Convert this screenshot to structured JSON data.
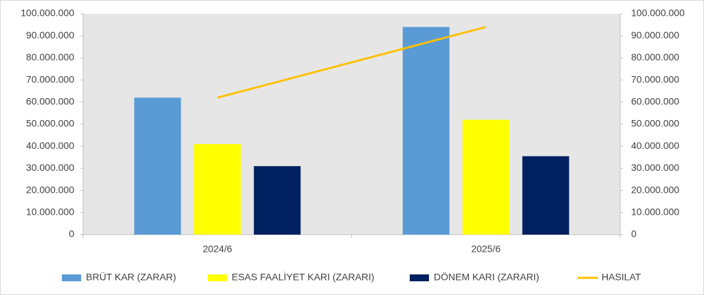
{
  "chart_data": {
    "type": "bar",
    "categories": [
      "2024/6",
      "2025/6"
    ],
    "series": [
      {
        "name": "BRÜT KAR (ZARAR)",
        "color": "#5b9bd5",
        "values": [
          62000000,
          94000000
        ]
      },
      {
        "name": "ESAS FAALİYET KARI (ZARARI)",
        "color": "#ffff00",
        "values": [
          41000000,
          52000000
        ]
      },
      {
        "name": "DÖNEM KARI (ZARARI)",
        "color": "#002060",
        "values": [
          31000000,
          35500000
        ]
      },
      {
        "name": "HASILAT",
        "color": "#ffc000",
        "type": "line",
        "axis": "y2",
        "values": [
          62000000,
          94000000
        ]
      }
    ],
    "ylim": [
      0,
      100000000
    ],
    "yticks": [
      0,
      {
        "value": 10000000,
        "label": "10.000.000"
      },
      {
        "value": 20000000,
        "label": "20.000.000"
      },
      {
        "value": 30000000,
        "label": "30.000.000"
      },
      {
        "value": 40000000,
        "label": "40.000.000"
      },
      {
        "value": 50000000,
        "label": "50.000.000"
      },
      {
        "value": 60000000,
        "label": "60.000.000"
      },
      {
        "value": 70000000,
        "label": "70.000.000"
      },
      {
        "value": 80000000,
        "label": "80.000.000"
      },
      {
        "value": 90000000,
        "label": "90.000.000"
      },
      {
        "value": 100000000,
        "label": "100.000.000"
      }
    ],
    "y2lim": [
      0,
      100000000
    ],
    "y2ticks": [
      0,
      {
        "value": 10000000,
        "label": "10.000.000"
      },
      {
        "value": 20000000,
        "label": "20.000.000"
      },
      {
        "value": 30000000,
        "label": "30.000.000"
      },
      {
        "value": 40000000,
        "label": "40.000.000"
      },
      {
        "value": 50000000,
        "label": "50.000.000"
      },
      {
        "value": 60000000,
        "label": "60.000.000"
      },
      {
        "value": 70000000,
        "label": "70.000.000"
      },
      {
        "value": 80000000,
        "label": "80.000.000"
      },
      {
        "value": 90000000,
        "label": "90.000.000"
      },
      {
        "value": 100000000,
        "label": "100.000.000"
      }
    ],
    "grid": false,
    "legend": "bottom"
  }
}
